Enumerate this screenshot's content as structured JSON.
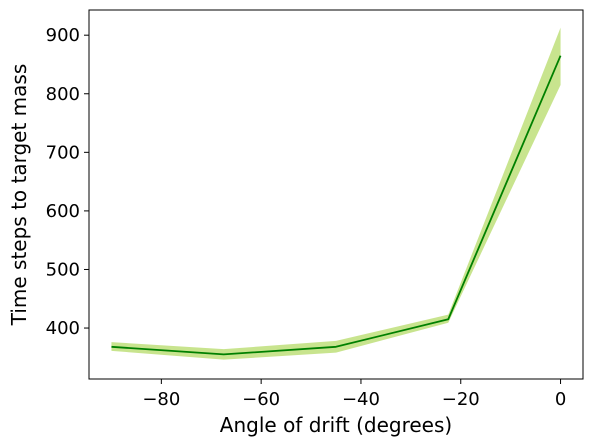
{
  "chart_data": {
    "type": "line",
    "title": "",
    "xlabel": "Angle of drift (degrees)",
    "ylabel": "Time steps to target mass",
    "xlim": [
      -94.5,
      4.5
    ],
    "ylim": [
      313,
      943
    ],
    "xticks": [
      -80,
      -60,
      -40,
      -20,
      0
    ],
    "xtick_labels": [
      "−80",
      "−60",
      "−40",
      "−20",
      "0"
    ],
    "yticks": [
      400,
      500,
      600,
      700,
      800,
      900
    ],
    "ytick_labels": [
      "400",
      "500",
      "600",
      "700",
      "800",
      "900"
    ],
    "grid": false,
    "legend": "none",
    "series": [
      {
        "x": [
          -90,
          -67.5,
          -45,
          -22.5,
          0
        ],
        "y": [
          368,
          355,
          368,
          415,
          865
        ],
        "lower": [
          361,
          346,
          358,
          409,
          815
        ],
        "upper": [
          376,
          364,
          378,
          423,
          913
        ],
        "line_color": "#008000",
        "band_color": "#9acd32"
      }
    ]
  }
}
